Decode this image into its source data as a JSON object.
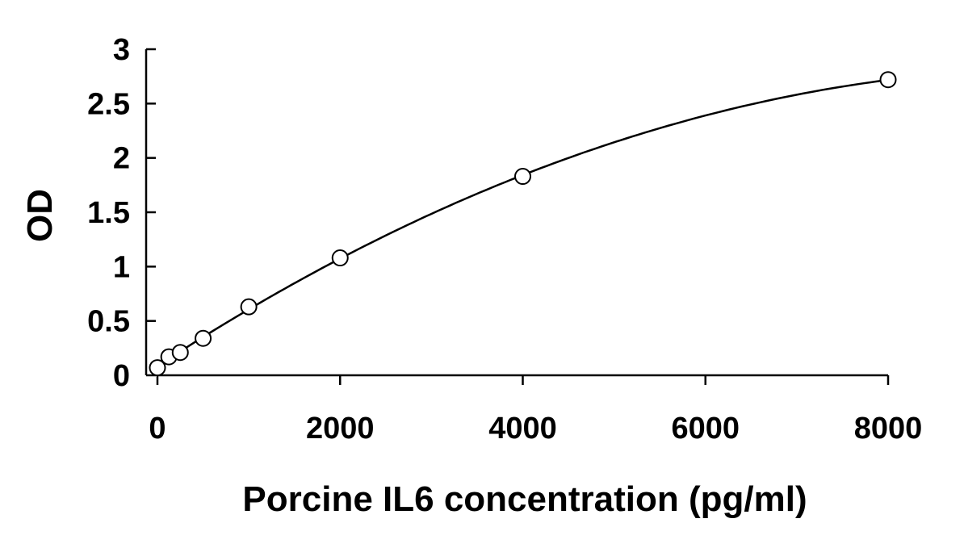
{
  "chart_data": {
    "type": "scatter",
    "title": "",
    "xlabel": "Porcine IL6 concentration (pg/ml)",
    "ylabel": "OD",
    "xlim": [
      0,
      8000
    ],
    "ylim": [
      0,
      3
    ],
    "x_ticks": [
      "0",
      "2000",
      "4000",
      "6000",
      "8000"
    ],
    "y_ticks": [
      "0",
      "0.5",
      "1",
      "1.5",
      "2",
      "2.5",
      "3"
    ],
    "grid": false,
    "legend": "none",
    "colors": {
      "marker": "#000000",
      "curve": "#000000",
      "axis": "#000000"
    },
    "series": [
      {
        "marker": "open-circle",
        "fit_line": "smooth-curve",
        "x": [
          0,
          125,
          250,
          500,
          1000,
          2000,
          4000,
          8000
        ],
        "y": [
          0.07,
          0.17,
          0.21,
          0.34,
          0.63,
          1.08,
          1.83,
          2.72
        ]
      }
    ]
  }
}
